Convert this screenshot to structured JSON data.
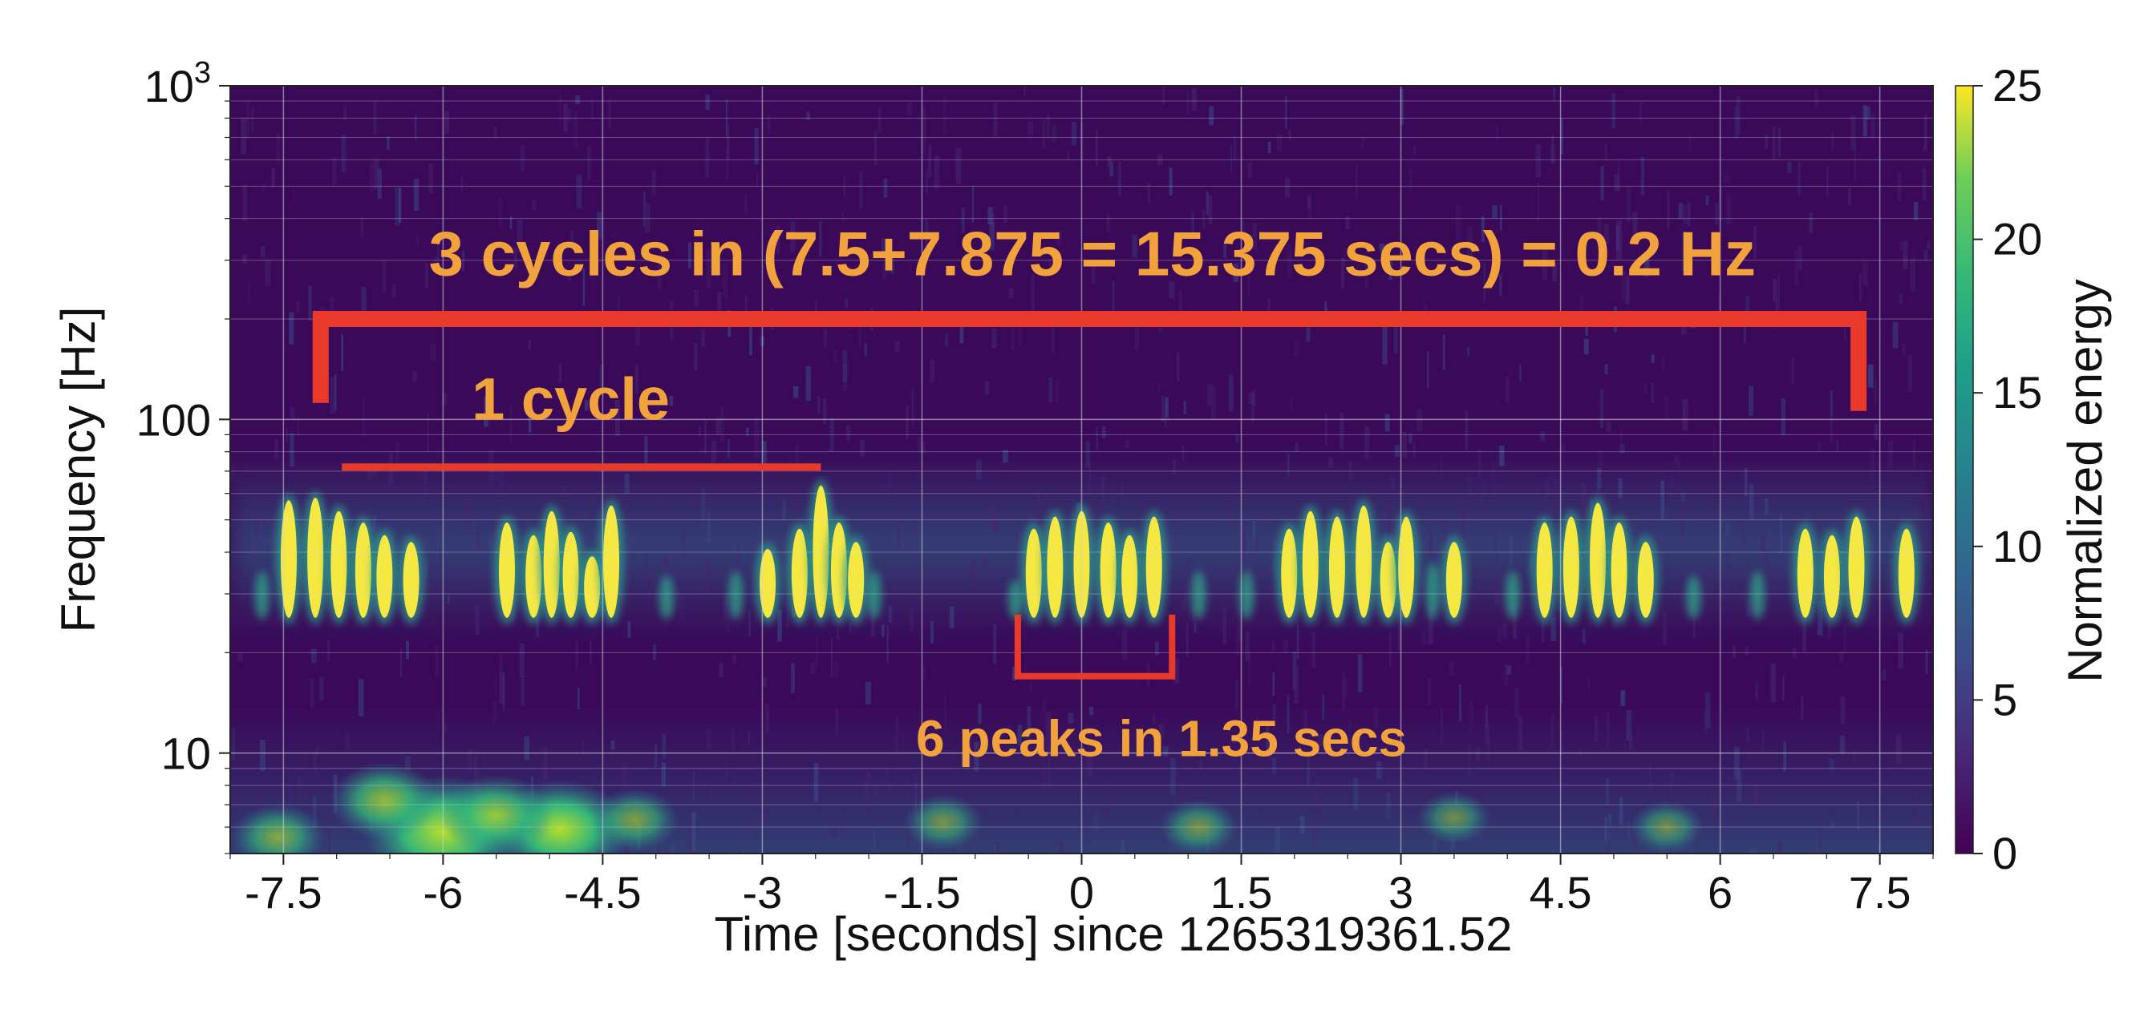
{
  "chart_data": {
    "type": "heatmap",
    "title": "",
    "xlabel": "Time [seconds] since 1265319361.52",
    "ylabel": "Frequency [Hz]",
    "xlim": [
      -8,
      8
    ],
    "ylim": [
      5,
      1000
    ],
    "yscale": "log",
    "grid": true,
    "x_ticks": [
      "-7.5",
      "-6",
      "-4.5",
      "-3",
      "-1.5",
      "0",
      "1.5",
      "3",
      "4.5",
      "6",
      "7.5"
    ],
    "x_tick_values": [
      -7.5,
      -6,
      -4.5,
      -3,
      -1.5,
      0,
      1.5,
      3,
      4.5,
      6,
      7.5
    ],
    "y_ticks": [
      {
        "value": 10,
        "base": "10",
        "exp": ""
      },
      {
        "value": 100,
        "base": "100",
        "exp": ""
      },
      {
        "value": 1000,
        "base": "10",
        "exp": "3"
      }
    ],
    "colorbar": {
      "label": "Normalized energy",
      "range": [
        0,
        25
      ],
      "ticks": [
        "0",
        "5",
        "10",
        "15",
        "20",
        "25"
      ],
      "tick_values": [
        0,
        5,
        10,
        15,
        20,
        25
      ],
      "colormap": "viridis"
    },
    "band": {
      "freq_low": 26,
      "freq_high": 60
    },
    "peaks": [
      {
        "t": -7.45,
        "top": 56
      },
      {
        "t": -7.2,
        "top": 57
      },
      {
        "t": -6.98,
        "top": 52
      },
      {
        "t": -6.75,
        "top": 48
      },
      {
        "t": -6.55,
        "top": 44
      },
      {
        "t": -6.3,
        "top": 42
      },
      {
        "t": -5.4,
        "top": 48
      },
      {
        "t": -5.15,
        "top": 44
      },
      {
        "t": -4.98,
        "top": 52
      },
      {
        "t": -4.8,
        "top": 45
      },
      {
        "t": -4.6,
        "top": 38
      },
      {
        "t": -4.42,
        "top": 54
      },
      {
        "t": -2.95,
        "top": 40
      },
      {
        "t": -2.65,
        "top": 46
      },
      {
        "t": -2.45,
        "top": 62
      },
      {
        "t": -2.28,
        "top": 48
      },
      {
        "t": -2.12,
        "top": 42
      },
      {
        "t": -0.45,
        "top": 46
      },
      {
        "t": -0.25,
        "top": 50
      },
      {
        "t": 0.0,
        "top": 52
      },
      {
        "t": 0.25,
        "top": 48
      },
      {
        "t": 0.45,
        "top": 44
      },
      {
        "t": 0.68,
        "top": 50
      },
      {
        "t": 1.95,
        "top": 46
      },
      {
        "t": 2.15,
        "top": 52
      },
      {
        "t": 2.4,
        "top": 50
      },
      {
        "t": 2.65,
        "top": 54
      },
      {
        "t": 2.88,
        "top": 42
      },
      {
        "t": 3.05,
        "top": 50
      },
      {
        "t": 3.5,
        "top": 42
      },
      {
        "t": 4.35,
        "top": 48
      },
      {
        "t": 4.6,
        "top": 50
      },
      {
        "t": 4.85,
        "top": 55
      },
      {
        "t": 5.05,
        "top": 48
      },
      {
        "t": 5.3,
        "top": 42
      },
      {
        "t": 6.8,
        "top": 46
      },
      {
        "t": 7.05,
        "top": 44
      },
      {
        "t": 7.28,
        "top": 50
      },
      {
        "t": 7.75,
        "top": 46
      }
    ],
    "faint_peaks": [
      {
        "t": -7.7,
        "top": 34
      },
      {
        "t": -3.9,
        "top": 33
      },
      {
        "t": -3.25,
        "top": 34
      },
      {
        "t": -1.95,
        "top": 34
      },
      {
        "t": -0.62,
        "top": 32
      },
      {
        "t": 1.1,
        "top": 34
      },
      {
        "t": 1.55,
        "top": 34
      },
      {
        "t": 3.3,
        "top": 36
      },
      {
        "t": 4.05,
        "top": 34
      },
      {
        "t": 5.75,
        "top": 33
      },
      {
        "t": 6.35,
        "top": 34
      }
    ],
    "low_blobs": [
      {
        "t": -6.0,
        "f": 5.8,
        "v": 22
      },
      {
        "t": -4.9,
        "f": 5.9,
        "v": 18
      },
      {
        "t": -6.55,
        "f": 7.2,
        "v": 12
      },
      {
        "t": -5.5,
        "f": 6.5,
        "v": 13
      },
      {
        "t": -7.55,
        "f": 5.6,
        "v": 9
      },
      {
        "t": -4.2,
        "f": 6.3,
        "v": 8
      },
      {
        "t": -1.3,
        "f": 6.2,
        "v": 6
      },
      {
        "t": 1.1,
        "f": 6.0,
        "v": 6
      },
      {
        "t": 3.5,
        "f": 6.4,
        "v": 5
      },
      {
        "t": 5.5,
        "f": 6.0,
        "v": 5
      }
    ],
    "annotations": {
      "big_span_text": "3 cycles in (7.5+7.875 = 15.375 secs) = 0.2 Hz",
      "one_cycle_text": "1 cycle",
      "six_peaks_text": "6 peaks in 1.35 secs",
      "big_bracket": {
        "t_start": -7.15,
        "t_end": 7.3,
        "freq_bar": 200,
        "freq_left_end": 112,
        "freq_right_end": 106
      },
      "cycle_line": {
        "t_start": -6.95,
        "t_end": -2.45,
        "freq": 72
      },
      "small_bracket": {
        "t_start": -0.6,
        "t_end": 0.85,
        "freq_top": 26,
        "freq_bottom": 17
      },
      "big_text_anchor": {
        "t": 0.1,
        "f": 270
      },
      "cycle_text_anchor": {
        "t": -4.8,
        "f": 100
      },
      "peaks_text_anchor": {
        "t": 0.75,
        "f": 9.8
      },
      "text_color": "#f2a23c",
      "line_color": "#e8392a"
    },
    "colors": {
      "background": "#3a0a58",
      "peak": "#f6e843",
      "grid": "#cfd2e0"
    }
  }
}
